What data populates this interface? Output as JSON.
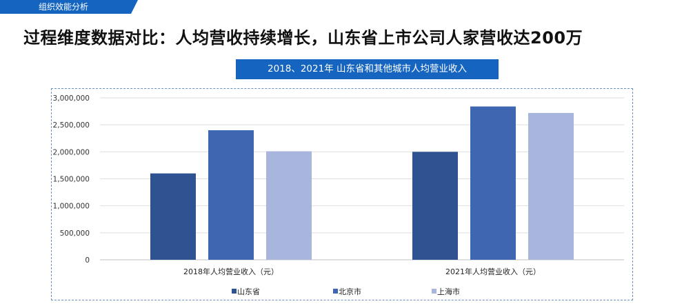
{
  "header": {
    "section_label": "组织效能分析",
    "title": "过程维度数据对比：人均营收持续增长，山东省上市公司人家营收达200万"
  },
  "chart_caption": "2018、2021年 山东省和其他城市人均营业收入",
  "colors": {
    "accent": "#1565c0",
    "shandong": "#2e5390",
    "beijing": "#3f66b0",
    "shanghai": "#a8b5dc"
  },
  "chart_data": {
    "type": "bar",
    "categories": [
      "2018年人均营业收入（元）",
      "2021年人均营业收入（元）"
    ],
    "series": [
      {
        "name": "山东省",
        "values": [
          1600000,
          2000000
        ],
        "color": "#2e5390"
      },
      {
        "name": "北京市",
        "values": [
          2400000,
          2840000
        ],
        "color": "#3f66b0"
      },
      {
        "name": "上海市",
        "values": [
          2010000,
          2720000
        ],
        "color": "#a8b5dc"
      }
    ],
    "ylim": [
      0,
      3000000
    ],
    "yticks": [
      "0",
      "500,000",
      "1,000,000",
      "1,500,000",
      "2,000,000",
      "2,500,000",
      "3,000,000"
    ],
    "grid": true,
    "legend_position": "bottom",
    "xlabel": "",
    "ylabel": ""
  }
}
